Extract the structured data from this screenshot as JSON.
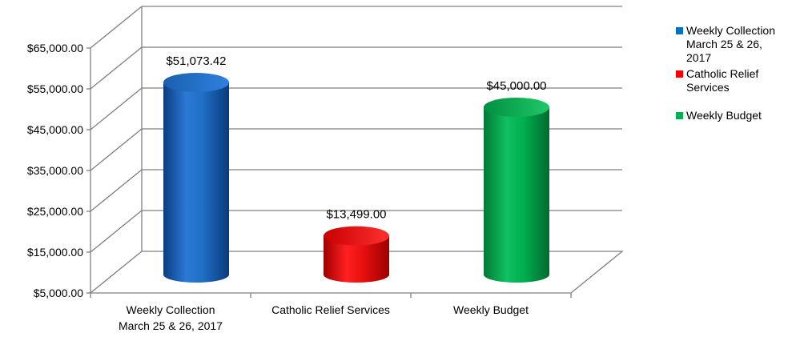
{
  "chart_data": {
    "type": "bar",
    "title": "",
    "xlabel": "",
    "ylabel": "",
    "ylim": [
      5000,
      65000
    ],
    "y_ticks": [
      "$5,000.00",
      "$15,000.00",
      "$25,000.00",
      "$35,000.00",
      "$45,000.00",
      "$55,000.00",
      "$65,000.00"
    ],
    "y_tick_values": [
      5000,
      15000,
      25000,
      35000,
      45000,
      55000,
      65000
    ],
    "categories": [
      [
        "Weekly Collection",
        "March 25 & 26, 2017"
      ],
      [
        "Catholic Relief Services"
      ],
      [
        "Weekly Budget"
      ]
    ],
    "values": [
      51073.42,
      13499.0,
      45000.0
    ],
    "value_labels": [
      "$51,073.42",
      "$13,499.00",
      "$45,000.00"
    ],
    "colors": [
      "#1f6fc5",
      "#e81010",
      "#00b050"
    ],
    "grid": true,
    "style": "3d-cylinder",
    "legend_position": "right",
    "legend": [
      {
        "lines": [
          "Weekly Collection",
          "March 25 & 26,",
          "2017"
        ],
        "color": "#0070c0"
      },
      {
        "lines": [
          "Catholic Relief",
          "Services"
        ],
        "color": "#ff0000"
      },
      {
        "lines": [
          "Weekly Budget"
        ],
        "color": "#00b050"
      }
    ]
  }
}
